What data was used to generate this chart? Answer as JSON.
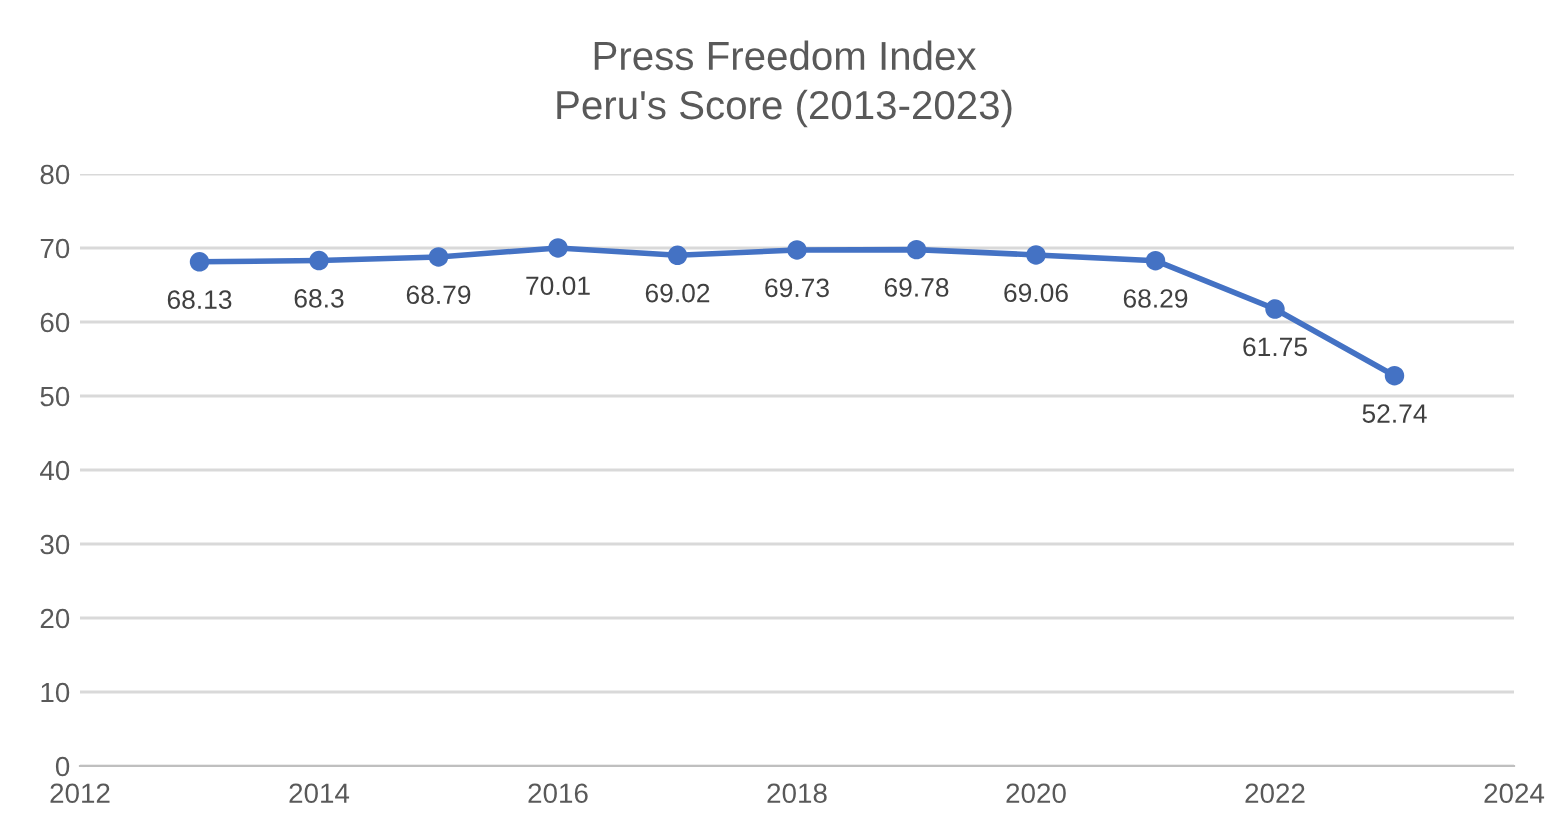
{
  "chart_data": {
    "type": "line",
    "title": "Press Freedom Index\nPeru's Score (2013-2023)",
    "x": [
      2013,
      2014,
      2015,
      2016,
      2017,
      2018,
      2019,
      2020,
      2021,
      2022,
      2023
    ],
    "series": [
      {
        "color": "#4472c4",
        "values": [
          68.13,
          68.3,
          68.79,
          70.01,
          69.02,
          69.73,
          69.78,
          69.06,
          68.29,
          61.75,
          52.74
        ]
      }
    ],
    "xlim": [
      2012,
      2024
    ],
    "xticks": [
      2012,
      2014,
      2016,
      2018,
      2020,
      2022,
      2024
    ],
    "ylim": [
      0,
      80
    ],
    "yticks": [
      0,
      10,
      20,
      30,
      40,
      50,
      60,
      70,
      80
    ],
    "grid": "y",
    "marker": "circle",
    "line_style": "solid",
    "data_labels": true
  }
}
